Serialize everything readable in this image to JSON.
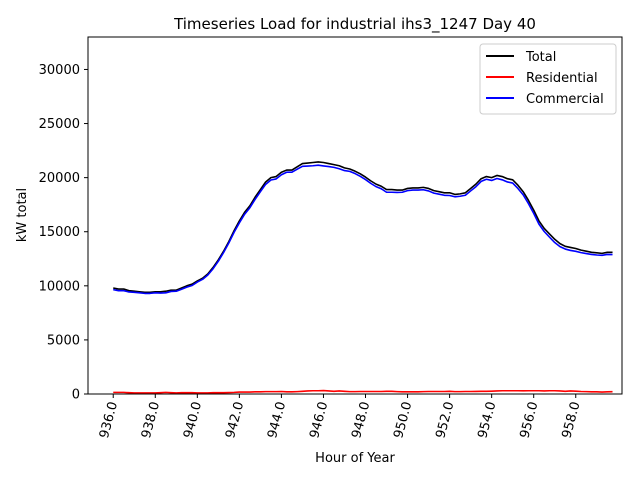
{
  "chart_data": {
    "type": "line",
    "title": "Timeseries Load for industrial ihs3_1247  Day 40",
    "xlabel": "Hour of Year",
    "ylabel": "kW total",
    "xlim": [
      934.8,
      960.2
    ],
    "ylim": [
      0,
      33000
    ],
    "x_ticks": [
      936,
      938,
      940,
      942,
      944,
      946,
      948,
      950,
      952,
      954,
      956,
      958
    ],
    "x_tick_labels": [
      "936.0",
      "938.0",
      "940.0",
      "942.0",
      "944.0",
      "946.0",
      "948.0",
      "950.0",
      "952.0",
      "954.0",
      "956.0",
      "958.0"
    ],
    "y_ticks": [
      0,
      5000,
      10000,
      15000,
      20000,
      25000,
      30000
    ],
    "y_tick_labels": [
      "0",
      "5000",
      "10000",
      "15000",
      "20000",
      "25000",
      "30000"
    ],
    "legend_position": "top-right",
    "x": [
      936.0,
      936.25,
      936.5,
      936.75,
      937.0,
      937.25,
      937.5,
      937.75,
      938.0,
      938.25,
      938.5,
      938.75,
      939.0,
      939.25,
      939.5,
      939.75,
      940.0,
      940.25,
      940.5,
      940.75,
      941.0,
      941.25,
      941.5,
      941.75,
      942.0,
      942.25,
      942.5,
      942.75,
      943.0,
      943.25,
      943.5,
      943.75,
      944.0,
      944.25,
      944.5,
      944.75,
      945.0,
      945.25,
      945.5,
      945.75,
      946.0,
      946.25,
      946.5,
      946.75,
      947.0,
      947.25,
      947.5,
      947.75,
      948.0,
      948.25,
      948.5,
      948.75,
      949.0,
      949.25,
      949.5,
      949.75,
      950.0,
      950.25,
      950.5,
      950.75,
      951.0,
      951.25,
      951.5,
      951.75,
      952.0,
      952.25,
      952.5,
      952.75,
      953.0,
      953.25,
      953.5,
      953.75,
      954.0,
      954.25,
      954.5,
      954.75,
      955.0,
      955.25,
      955.5,
      955.75,
      956.0,
      956.25,
      956.5,
      956.75,
      957.0,
      957.25,
      957.5,
      957.75,
      958.0,
      958.25,
      958.5,
      958.75,
      959.0,
      959.25,
      959.5,
      959.75
    ],
    "series": [
      {
        "name": "Total",
        "color": "#000000",
        "values": [
          9800,
          9700,
          9700,
          9550,
          9500,
          9450,
          9400,
          9400,
          9450,
          9450,
          9500,
          9600,
          9600,
          9800,
          10000,
          10150,
          10450,
          10700,
          11100,
          11700,
          12400,
          13200,
          14100,
          15100,
          16000,
          16800,
          17400,
          18200,
          18900,
          19600,
          20000,
          20100,
          20500,
          20700,
          20700,
          21000,
          21300,
          21350,
          21400,
          21450,
          21400,
          21300,
          21200,
          21100,
          20900,
          20800,
          20600,
          20350,
          20050,
          19700,
          19400,
          19200,
          18900,
          18900,
          18850,
          18850,
          19000,
          19050,
          19050,
          19100,
          19000,
          18800,
          18700,
          18600,
          18600,
          18450,
          18500,
          18600,
          19000,
          19400,
          19900,
          20100,
          20000,
          20200,
          20100,
          19900,
          19800,
          19300,
          18700,
          17900,
          17000,
          16000,
          15300,
          14800,
          14300,
          13900,
          13650,
          13550,
          13450,
          13300,
          13200,
          13100,
          13050,
          13000,
          13100,
          13100
        ]
      },
      {
        "name": "Residential",
        "color": "#ff0000",
        "values": [
          150,
          150,
          150,
          120,
          100,
          100,
          100,
          100,
          100,
          120,
          150,
          120,
          100,
          120,
          120,
          120,
          100,
          100,
          100,
          120,
          120,
          120,
          130,
          150,
          180,
          180,
          180,
          200,
          200,
          220,
          220,
          220,
          230,
          200,
          200,
          220,
          250,
          280,
          300,
          300,
          320,
          280,
          250,
          280,
          250,
          220,
          220,
          230,
          230,
          230,
          230,
          230,
          250,
          250,
          220,
          200,
          200,
          200,
          200,
          220,
          230,
          230,
          230,
          230,
          250,
          220,
          220,
          230,
          230,
          240,
          250,
          250,
          260,
          280,
          300,
          300,
          300,
          300,
          290,
          300,
          300,
          300,
          280,
          300,
          300,
          280,
          250,
          280,
          260,
          230,
          220,
          200,
          200,
          180,
          200,
          210
        ]
      },
      {
        "name": "Commercial",
        "color": "#0000ff",
        "values": [
          9650,
          9550,
          9550,
          9430,
          9400,
          9350,
          9300,
          9300,
          9350,
          9330,
          9350,
          9480,
          9500,
          9680,
          9880,
          10030,
          10350,
          10600,
          11000,
          11580,
          12280,
          13080,
          13970,
          14950,
          15820,
          16620,
          17220,
          18000,
          18700,
          19380,
          19780,
          19880,
          20270,
          20500,
          20500,
          20780,
          21050,
          21070,
          21100,
          21150,
          21080,
          21020,
          20950,
          20820,
          20650,
          20580,
          20380,
          20120,
          19820,
          19470,
          19170,
          18970,
          18650,
          18650,
          18630,
          18650,
          18800,
          18850,
          18850,
          18880,
          18770,
          18570,
          18470,
          18370,
          18350,
          18230,
          18280,
          18370,
          18770,
          19160,
          19650,
          19850,
          19740,
          19920,
          19800,
          19600,
          19500,
          19000,
          18410,
          17600,
          16700,
          15700,
          15020,
          14500,
          14000,
          13620,
          13400,
          13270,
          13190,
          13070,
          12980,
          12900,
          12850,
          12820,
          12900,
          12890
        ]
      }
    ]
  }
}
